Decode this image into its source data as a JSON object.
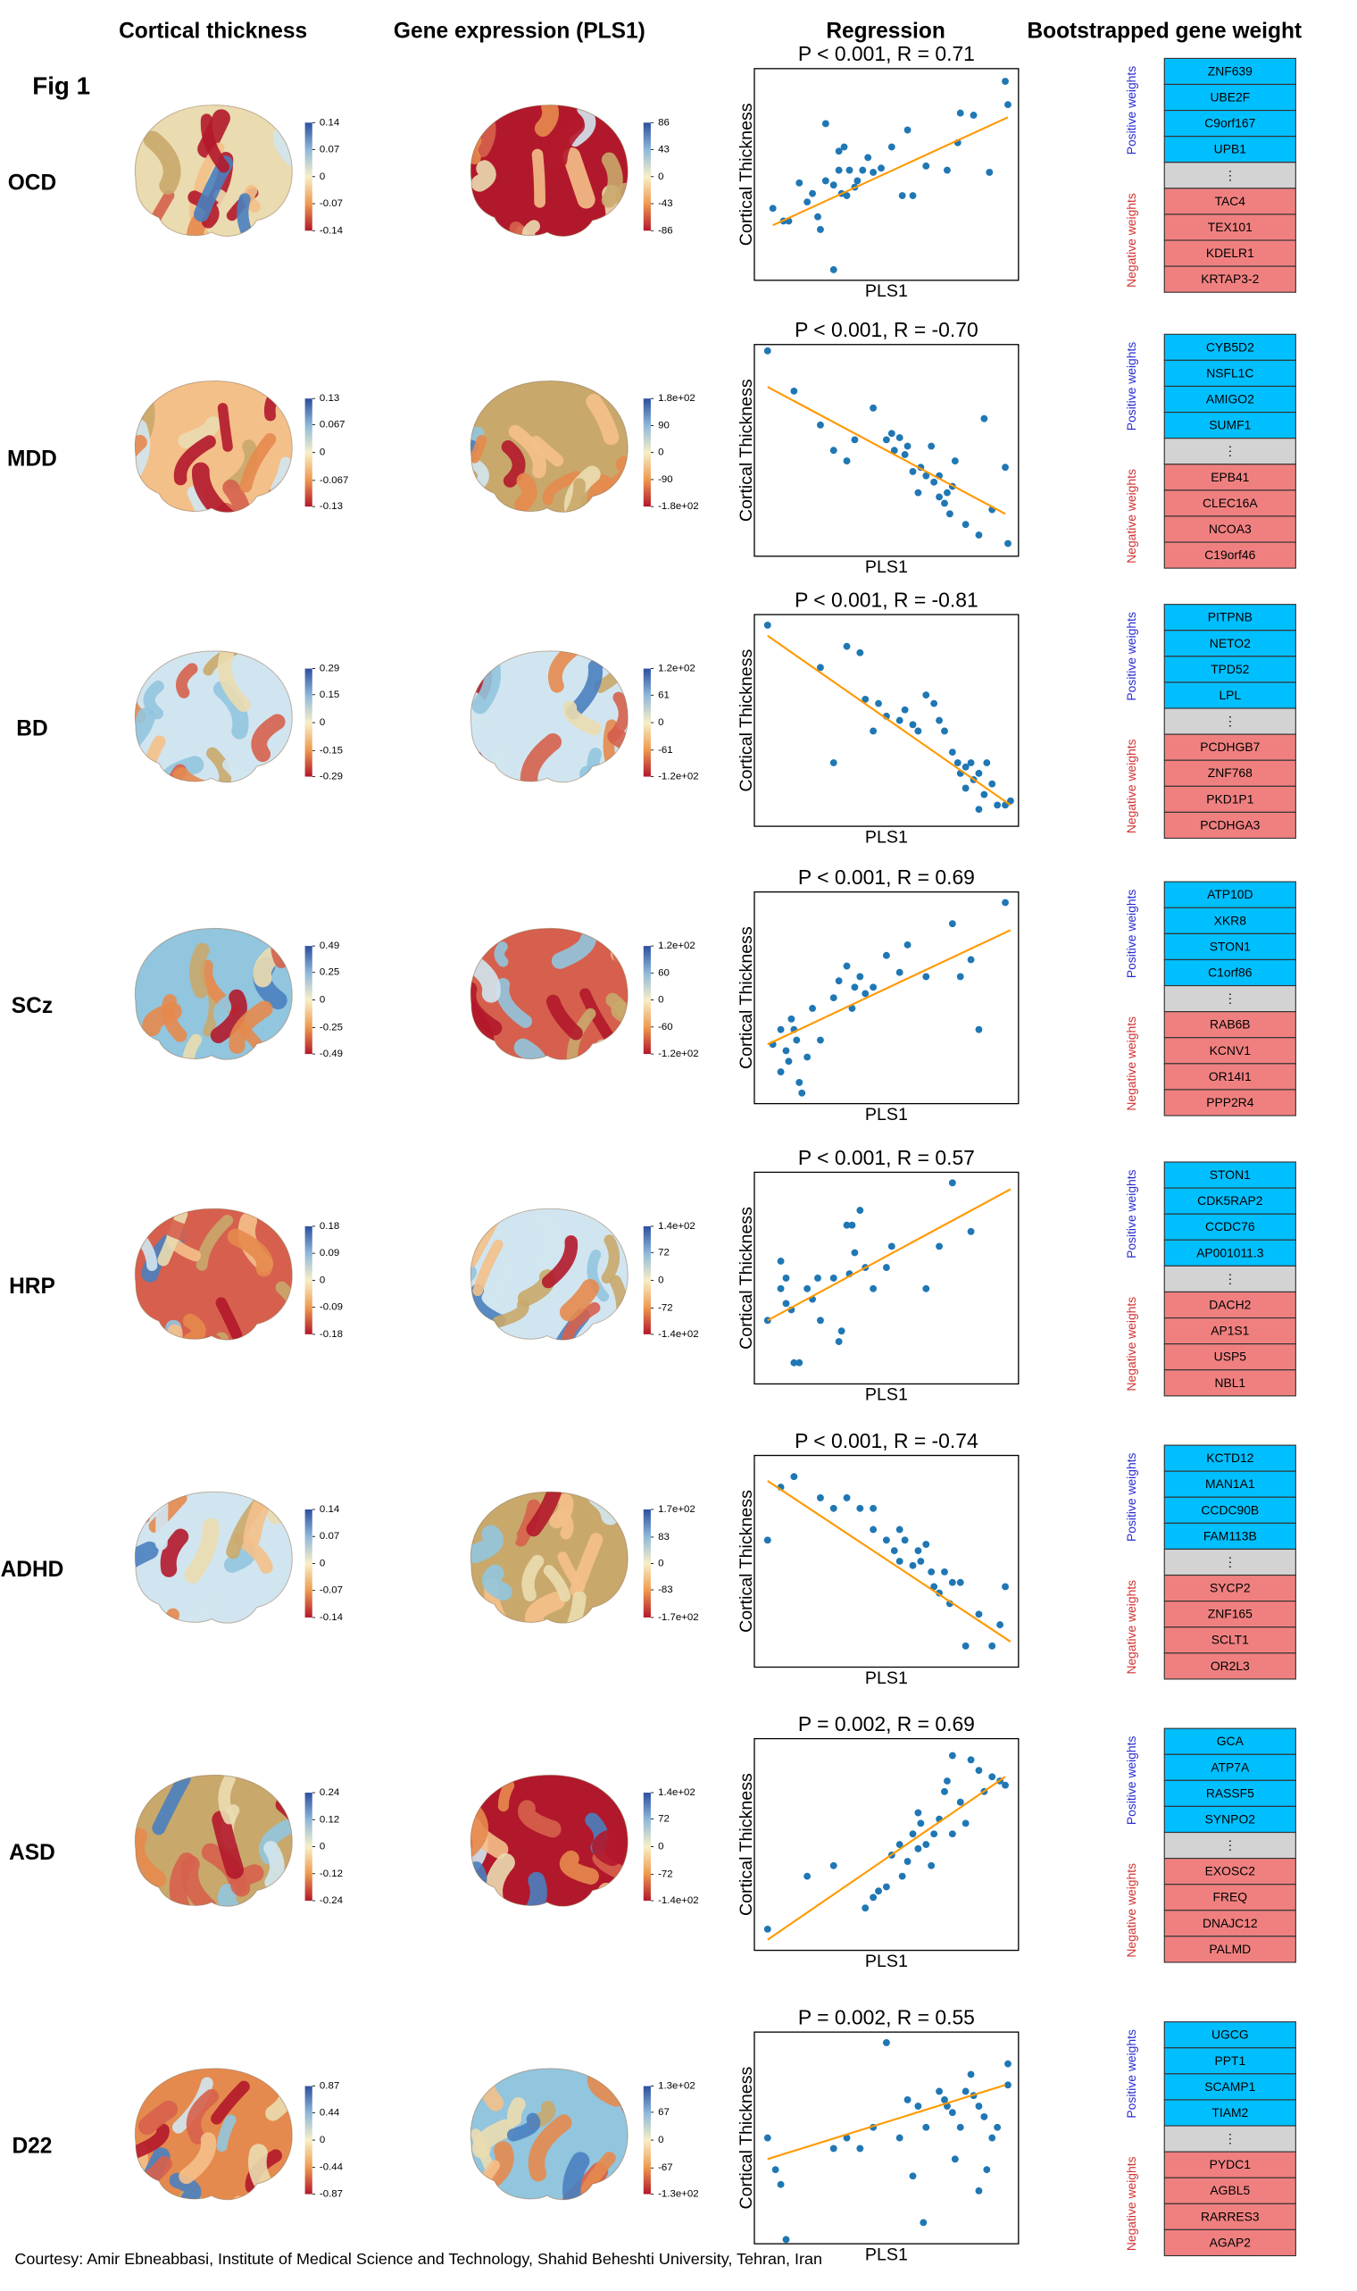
{
  "headers": [
    "Cortical thickness",
    "Gene expression (PLS1)",
    "Regression",
    "Bootstrapped gene weight"
  ],
  "fig_label": "Fig 1",
  "positive_label": "Positive weights",
  "negative_label": "Negative weights",
  "ellipsis": "⋮",
  "footer": "Courtesy: Amir Ebneabbasi, Institute of Medical Science and Technology, Shahid Beheshti University, Tehran, Iran",
  "rows": [
    {
      "label": "OCD",
      "thickness_cbar": [
        0.14,
        0.07,
        0,
        -0.07,
        -0.14
      ],
      "expression_cbar": [
        86,
        43,
        0,
        -43,
        -86
      ],
      "positive_genes": [
        "ZNF639",
        "UBE2F",
        "C9orf167",
        "UPB1"
      ],
      "negative_genes": [
        "TAC4",
        "TEX101",
        "KDELR1",
        "KRTAP3-2"
      ]
    },
    {
      "label": "MDD",
      "thickness_cbar": [
        0.13,
        0.067,
        0,
        -0.067,
        -0.13
      ],
      "expression_cbar": [
        {
          "value": 180,
          "label": "1.8e+02"
        },
        90,
        0,
        -90,
        {
          "value": -180,
          "label": "-1.8e+02"
        }
      ],
      "positive_genes": [
        "CYB5D2",
        "NSFL1C",
        "AMIGO2",
        "SUMF1"
      ],
      "negative_genes": [
        "EPB41",
        "CLEC16A",
        "NCOA3",
        "C19orf46"
      ]
    },
    {
      "label": "BD",
      "thickness_cbar": [
        0.29,
        0.15,
        0,
        -0.15,
        -0.29
      ],
      "expression_cbar": [
        {
          "value": 120,
          "label": "1.2e+02"
        },
        61,
        0,
        -61,
        {
          "value": -120,
          "label": "-1.2e+02"
        }
      ],
      "positive_genes": [
        "PITPNB",
        "NETO2",
        "TPD52",
        "LPL"
      ],
      "negative_genes": [
        "PCDHGB7",
        "ZNF768",
        "PKD1P1",
        "PCDHGA3"
      ]
    },
    {
      "label": "SCz",
      "thickness_cbar": [
        0.49,
        0.25,
        0,
        -0.25,
        -0.49
      ],
      "expression_cbar": [
        {
          "value": 120,
          "label": "1.2e+02"
        },
        60,
        0,
        -60,
        {
          "value": -120,
          "label": "-1.2e+02"
        }
      ],
      "positive_genes": [
        "ATP10D",
        "XKR8",
        "STON1",
        "C1orf86"
      ],
      "negative_genes": [
        "RAB6B",
        "KCNV1",
        "OR14I1",
        "PPP2R4"
      ]
    },
    {
      "label": "HRP",
      "thickness_cbar": [
        0.18,
        0.09,
        0,
        -0.09,
        -0.18
      ],
      "expression_cbar": [
        {
          "value": 140,
          "label": "1.4e+02"
        },
        72,
        0,
        -72,
        {
          "value": -140,
          "label": "-1.4e+02"
        }
      ],
      "positive_genes": [
        "STON1",
        "CDK5RAP2",
        "CCDC76",
        "AP001011.3"
      ],
      "negative_genes": [
        "DACH2",
        "AP1S1",
        "USP5",
        "NBL1"
      ]
    },
    {
      "label": "ADHD",
      "thickness_cbar": [
        0.14,
        0.07,
        0,
        -0.07,
        -0.14
      ],
      "expression_cbar": [
        {
          "value": 170,
          "label": "1.7e+02"
        },
        83,
        0,
        -83,
        {
          "value": -170,
          "label": "-1.7e+02"
        }
      ],
      "positive_genes": [
        "KCTD12",
        "MAN1A1",
        "CCDC90B",
        "FAM113B"
      ],
      "negative_genes": [
        "SYCP2",
        "ZNF165",
        "SCLT1",
        "OR2L3"
      ]
    },
    {
      "label": "ASD",
      "thickness_cbar": [
        0.24,
        0.12,
        0,
        -0.12,
        -0.24
      ],
      "expression_cbar": [
        {
          "value": 140,
          "label": "1.4e+02"
        },
        72,
        0,
        -72,
        {
          "value": -140,
          "label": "-1.4e+02"
        }
      ],
      "positive_genes": [
        "GCA",
        "ATP7A",
        "RASSF5",
        "SYNPO2"
      ],
      "negative_genes": [
        "EXOSC2",
        "FREQ",
        "DNAJC12",
        "PALMD"
      ]
    },
    {
      "label": "D22",
      "thickness_cbar": [
        0.87,
        0.44,
        0,
        -0.44,
        -0.87
      ],
      "expression_cbar": [
        {
          "value": 130,
          "label": "1.3e+02"
        },
        67,
        0,
        -67,
        {
          "value": -130,
          "label": "-1.3e+02"
        }
      ],
      "positive_genes": [
        "UGCG",
        "PPT1",
        "SCAMP1",
        "TIAM2"
      ],
      "negative_genes": [
        "PYDC1",
        "AGBL5",
        "RARRES3",
        "AGAP2"
      ]
    }
  ],
  "chart_data": [
    {
      "type": "scatter",
      "title": "P < 0.001, R = 0.71",
      "x_label": "PLS1",
      "y_label": "Cortical Thickness",
      "xlim": [
        0,
        1
      ],
      "ylim": [
        0,
        1
      ],
      "color": "#1f77b4",
      "fit_color": "#ff9900",
      "x": [
        0.07,
        0.11,
        0.13,
        0.17,
        0.2,
        0.22,
        0.24,
        0.25,
        0.27,
        0.27,
        0.3,
        0.3,
        0.32,
        0.32,
        0.33,
        0.34,
        0.35,
        0.36,
        0.38,
        0.39,
        0.41,
        0.43,
        0.45,
        0.48,
        0.52,
        0.56,
        0.58,
        0.6,
        0.65,
        0.73,
        0.77,
        0.78,
        0.83,
        0.89,
        0.95,
        0.96
      ],
      "y": [
        0.34,
        0.28,
        0.28,
        0.46,
        0.37,
        0.41,
        0.3,
        0.24,
        0.74,
        0.47,
        0.05,
        0.45,
        0.52,
        0.61,
        0.41,
        0.63,
        0.4,
        0.52,
        0.44,
        0.47,
        0.52,
        0.58,
        0.51,
        0.53,
        0.63,
        0.4,
        0.71,
        0.4,
        0.54,
        0.52,
        0.65,
        0.79,
        0.78,
        0.51,
        0.94,
        0.83
      ],
      "fit_x": [
        0.07,
        0.96
      ],
      "fit_y": [
        0.26,
        0.77
      ]
    },
    {
      "type": "scatter",
      "title": "P < 0.001, R = -0.70",
      "x_label": "PLS1",
      "y_label": "Cortical Thickness",
      "xlim": [
        0,
        1
      ],
      "ylim": [
        0,
        1
      ],
      "color": "#1f77b4",
      "fit_color": "#ff9900",
      "x": [
        0.05,
        0.15,
        0.25,
        0.3,
        0.35,
        0.38,
        0.45,
        0.5,
        0.52,
        0.53,
        0.55,
        0.57,
        0.58,
        0.6,
        0.62,
        0.63,
        0.65,
        0.67,
        0.68,
        0.7,
        0.7,
        0.72,
        0.73,
        0.74,
        0.75,
        0.76,
        0.8,
        0.85,
        0.87,
        0.95,
        0.96,
        0.9
      ],
      "y": [
        0.97,
        0.78,
        0.62,
        0.5,
        0.45,
        0.55,
        0.7,
        0.55,
        0.58,
        0.5,
        0.56,
        0.48,
        0.52,
        0.4,
        0.3,
        0.42,
        0.38,
        0.52,
        0.35,
        0.38,
        0.28,
        0.25,
        0.3,
        0.2,
        0.33,
        0.45,
        0.15,
        0.1,
        0.65,
        0.42,
        0.06,
        0.22
      ],
      "fit_x": [
        0.05,
        0.95
      ],
      "fit_y": [
        0.8,
        0.2
      ]
    },
    {
      "type": "scatter",
      "title": "P < 0.001, R = -0.81",
      "x_label": "PLS1",
      "y_label": "Cortical Thickness",
      "xlim": [
        0,
        1
      ],
      "ylim": [
        0,
        1
      ],
      "color": "#1f77b4",
      "fit_color": "#ff9900",
      "x": [
        0.05,
        0.25,
        0.3,
        0.35,
        0.4,
        0.42,
        0.45,
        0.47,
        0.5,
        0.55,
        0.57,
        0.6,
        0.62,
        0.65,
        0.68,
        0.7,
        0.72,
        0.75,
        0.77,
        0.78,
        0.8,
        0.82,
        0.83,
        0.85,
        0.87,
        0.88,
        0.9,
        0.92,
        0.95,
        0.97,
        0.85,
        0.8
      ],
      "y": [
        0.95,
        0.75,
        0.3,
        0.85,
        0.82,
        0.6,
        0.45,
        0.58,
        0.52,
        0.5,
        0.55,
        0.48,
        0.45,
        0.62,
        0.58,
        0.5,
        0.45,
        0.35,
        0.3,
        0.25,
        0.28,
        0.3,
        0.22,
        0.25,
        0.15,
        0.3,
        0.2,
        0.1,
        0.1,
        0.12,
        0.08,
        0.18
      ],
      "fit_x": [
        0.05,
        0.97
      ],
      "fit_y": [
        0.9,
        0.1
      ]
    },
    {
      "type": "scatter",
      "title": "P < 0.001, R = 0.69",
      "x_label": "PLS1",
      "y_label": "Cortical Thickness",
      "xlim": [
        0,
        1
      ],
      "ylim": [
        0,
        1
      ],
      "color": "#1f77b4",
      "fit_color": "#ff9900",
      "x": [
        0.07,
        0.1,
        0.12,
        0.13,
        0.15,
        0.16,
        0.17,
        0.18,
        0.2,
        0.22,
        0.25,
        0.3,
        0.32,
        0.35,
        0.37,
        0.38,
        0.4,
        0.42,
        0.45,
        0.5,
        0.55,
        0.58,
        0.65,
        0.75,
        0.78,
        0.82,
        0.85,
        0.95,
        0.14,
        0.1
      ],
      "y": [
        0.28,
        0.35,
        0.25,
        0.2,
        0.35,
        0.3,
        0.1,
        0.05,
        0.22,
        0.45,
        0.3,
        0.5,
        0.58,
        0.65,
        0.45,
        0.55,
        0.6,
        0.52,
        0.55,
        0.7,
        0.62,
        0.75,
        0.6,
        0.85,
        0.6,
        0.68,
        0.35,
        0.95,
        0.4,
        0.15
      ],
      "fit_x": [
        0.05,
        0.97
      ],
      "fit_y": [
        0.28,
        0.82
      ]
    },
    {
      "type": "scatter",
      "title": "P < 0.001, R = 0.57",
      "x_label": "PLS1",
      "y_label": "Cortical Thickness",
      "xlim": [
        0,
        1
      ],
      "ylim": [
        0,
        1
      ],
      "color": "#1f77b4",
      "fit_color": "#ff9900",
      "x": [
        0.05,
        0.1,
        0.12,
        0.14,
        0.15,
        0.17,
        0.2,
        0.22,
        0.24,
        0.25,
        0.3,
        0.32,
        0.33,
        0.35,
        0.37,
        0.38,
        0.4,
        0.42,
        0.45,
        0.5,
        0.52,
        0.65,
        0.75,
        0.82,
        0.7,
        0.12,
        0.1,
        0.36
      ],
      "y": [
        0.3,
        0.45,
        0.38,
        0.35,
        0.1,
        0.1,
        0.45,
        0.4,
        0.5,
        0.3,
        0.5,
        0.2,
        0.25,
        0.75,
        0.75,
        0.62,
        0.82,
        0.55,
        0.45,
        0.55,
        0.65,
        0.45,
        0.95,
        0.72,
        0.65,
        0.5,
        0.58,
        0.52
      ],
      "fit_x": [
        0.05,
        0.97
      ],
      "fit_y": [
        0.3,
        0.92
      ]
    },
    {
      "type": "scatter",
      "title": "P < 0.001, R = -0.74",
      "x_label": "PLS1",
      "y_label": "Cortical Thickness",
      "xlim": [
        0,
        1
      ],
      "ylim": [
        0,
        1
      ],
      "color": "#1f77b4",
      "fit_color": "#ff9900",
      "x": [
        0.05,
        0.1,
        0.15,
        0.25,
        0.3,
        0.35,
        0.4,
        0.45,
        0.5,
        0.53,
        0.55,
        0.57,
        0.6,
        0.62,
        0.63,
        0.65,
        0.67,
        0.68,
        0.7,
        0.72,
        0.74,
        0.75,
        0.78,
        0.8,
        0.85,
        0.9,
        0.93,
        0.95,
        0.55,
        0.45
      ],
      "y": [
        0.6,
        0.85,
        0.9,
        0.8,
        0.75,
        0.8,
        0.75,
        0.65,
        0.6,
        0.55,
        0.5,
        0.6,
        0.48,
        0.55,
        0.5,
        0.58,
        0.45,
        0.38,
        0.35,
        0.45,
        0.3,
        0.4,
        0.4,
        0.1,
        0.25,
        0.1,
        0.2,
        0.38,
        0.65,
        0.75
      ],
      "fit_x": [
        0.05,
        0.97
      ],
      "fit_y": [
        0.88,
        0.12
      ]
    },
    {
      "type": "scatter",
      "title": "P = 0.002, R = 0.69",
      "x_label": "PLS1",
      "y_label": "Cortical Thickness",
      "xlim": [
        0,
        1
      ],
      "ylim": [
        0,
        1
      ],
      "color": "#1f77b4",
      "fit_color": "#ff9900",
      "x": [
        0.05,
        0.2,
        0.3,
        0.42,
        0.45,
        0.47,
        0.5,
        0.52,
        0.55,
        0.56,
        0.58,
        0.6,
        0.62,
        0.63,
        0.65,
        0.67,
        0.68,
        0.7,
        0.72,
        0.73,
        0.75,
        0.78,
        0.8,
        0.82,
        0.85,
        0.87,
        0.9,
        0.93,
        0.95,
        0.62,
        0.75
      ],
      "y": [
        0.1,
        0.35,
        0.4,
        0.2,
        0.25,
        0.28,
        0.3,
        0.45,
        0.5,
        0.35,
        0.42,
        0.55,
        0.48,
        0.6,
        0.5,
        0.4,
        0.55,
        0.62,
        0.75,
        0.8,
        0.55,
        0.7,
        0.6,
        0.9,
        0.85,
        0.75,
        0.82,
        0.8,
        0.78,
        0.65,
        0.92
      ],
      "fit_x": [
        0.05,
        0.95
      ],
      "fit_y": [
        0.05,
        0.82
      ]
    },
    {
      "type": "scatter",
      "title": "P = 0.002, R = 0.55",
      "x_label": "PLS1",
      "y_label": "Cortical Thickness",
      "xlim": [
        0,
        1
      ],
      "ylim": [
        0,
        1
      ],
      "color": "#1f77b4",
      "fit_color": "#ff9900",
      "x": [
        0.05,
        0.08,
        0.1,
        0.12,
        0.3,
        0.35,
        0.4,
        0.45,
        0.5,
        0.55,
        0.58,
        0.6,
        0.62,
        0.64,
        0.65,
        0.7,
        0.72,
        0.73,
        0.75,
        0.76,
        0.78,
        0.8,
        0.82,
        0.83,
        0.85,
        0.87,
        0.88,
        0.9,
        0.92,
        0.96,
        0.96,
        0.85
      ],
      "y": [
        0.5,
        0.35,
        0.28,
        0.02,
        0.45,
        0.5,
        0.45,
        0.55,
        0.95,
        0.5,
        0.68,
        0.32,
        0.65,
        0.1,
        0.55,
        0.72,
        0.68,
        0.65,
        0.62,
        0.4,
        0.55,
        0.72,
        0.8,
        0.7,
        0.65,
        0.6,
        0.35,
        0.5,
        0.55,
        0.85,
        0.75,
        0.25
      ],
      "fit_x": [
        0.05,
        0.95
      ],
      "fit_y": [
        0.4,
        0.75
      ]
    }
  ]
}
